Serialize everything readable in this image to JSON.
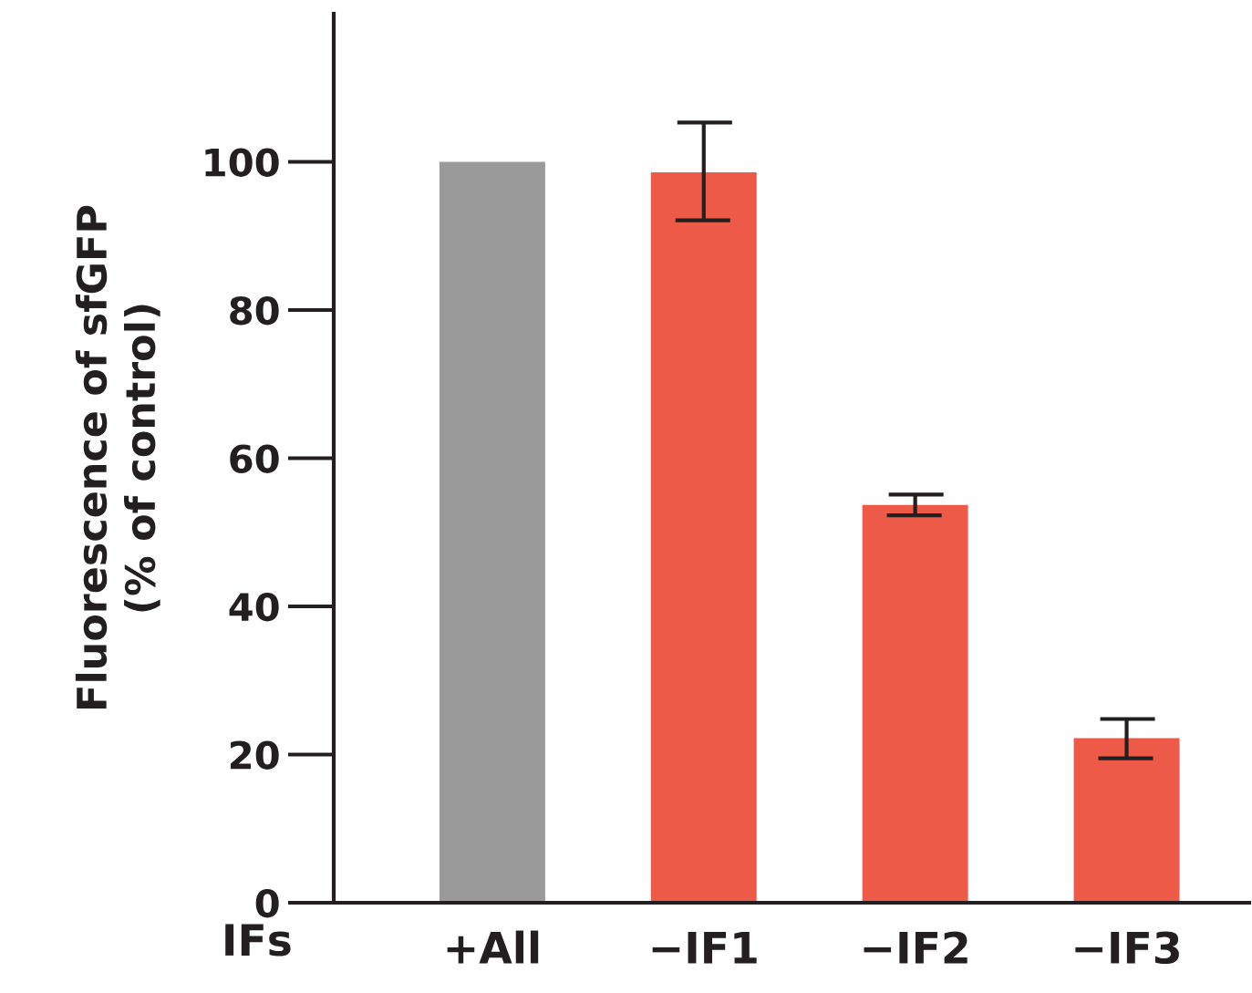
{
  "chart_data": {
    "type": "bar",
    "xlabel": "IFs",
    "ylabel": "Fluorescence of sfGFP\n(% of control)",
    "categories": [
      "+All",
      "−IF1",
      "−IF2",
      "−IF3"
    ],
    "values": [
      100,
      98.6,
      53.7,
      22.2
    ],
    "colors": [
      "#9a9a9a",
      "#ee5a48",
      "#ee5a48",
      "#ee5a48"
    ],
    "errors": [
      null,
      [
        92.1,
        105.3
      ],
      [
        52.3,
        55.1
      ],
      [
        19.5,
        24.8
      ]
    ],
    "ylim": [
      0,
      120
    ],
    "yticks": [
      0,
      20,
      40,
      60,
      80,
      100
    ],
    "grid": false,
    "legend": false
  }
}
